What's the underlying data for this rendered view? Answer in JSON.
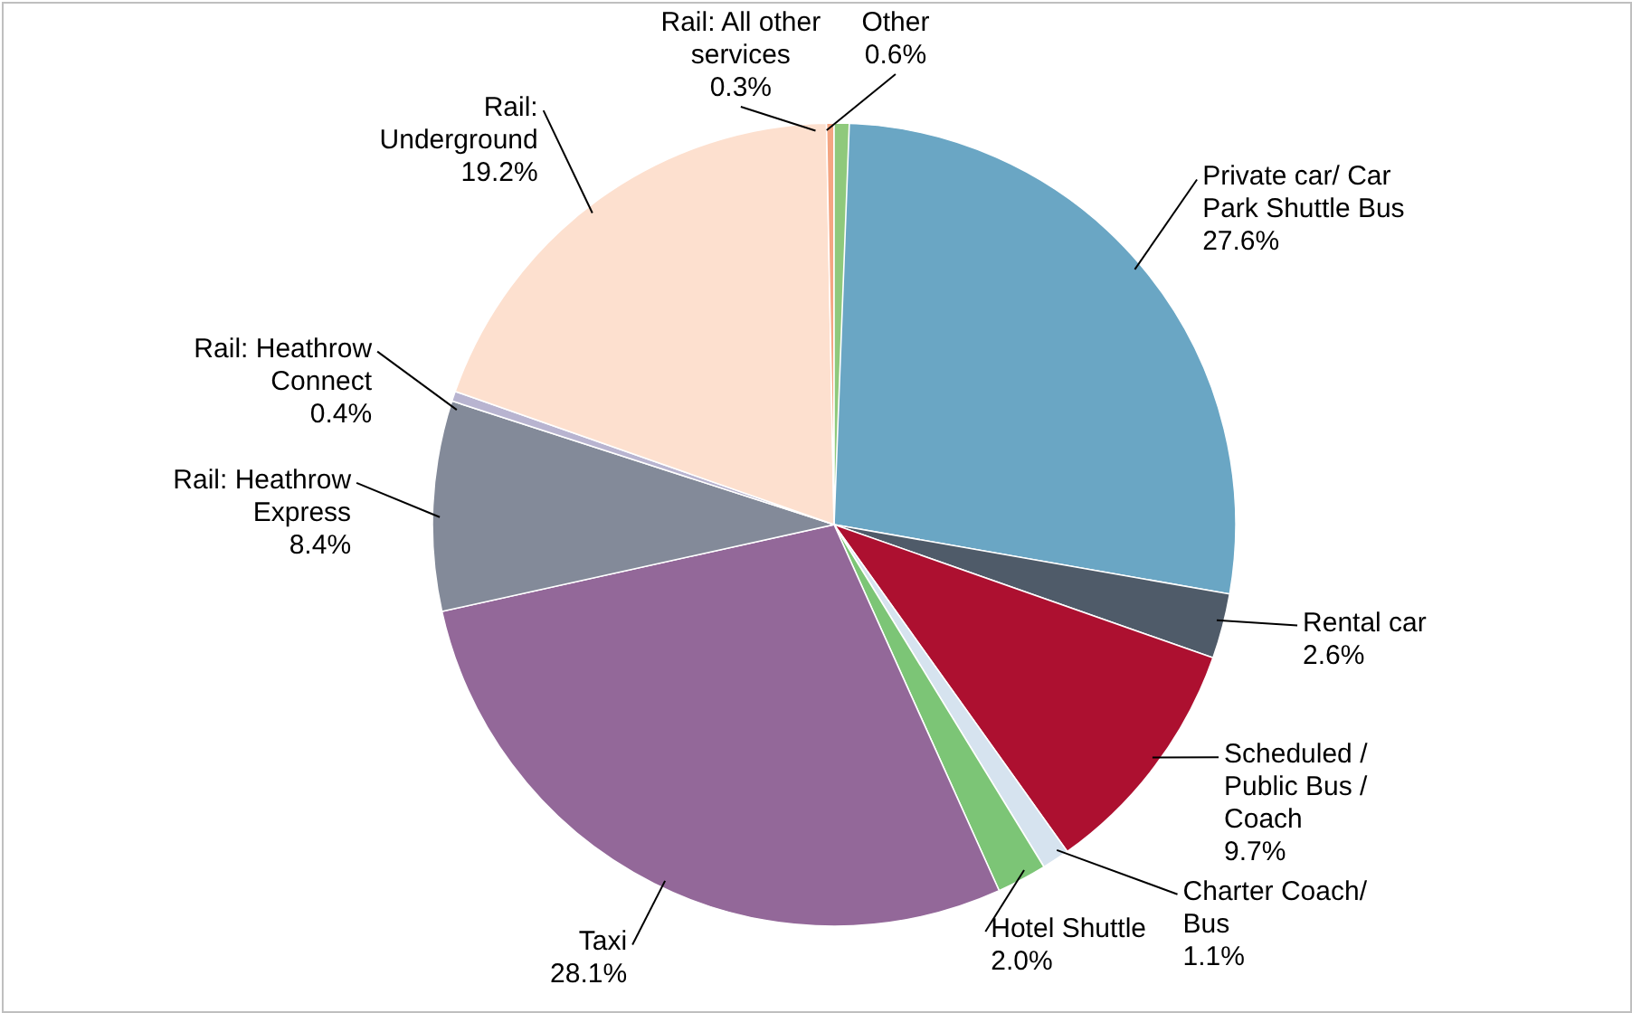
{
  "chart_data": {
    "type": "pie",
    "categories": [
      "Private car/ Car Park Shuttle Bus",
      "Rental car",
      "Scheduled / Public Bus / Coach",
      "Charter Coach/ Bus",
      "Hotel Shuttle",
      "Taxi",
      "Rail: Heathrow Express",
      "Rail: Heathrow Connect",
      "Rail: Underground",
      "Rail: All other services",
      "Other"
    ],
    "values": [
      27.6,
      2.6,
      9.7,
      1.1,
      2.0,
      28.1,
      8.4,
      0.4,
      19.2,
      0.3,
      0.6
    ],
    "colors": [
      "#6aa6c4",
      "#4f5b69",
      "#ad1030",
      "#d6e3ef",
      "#7cc576",
      "#936899",
      "#838a99",
      "#b8b4d0",
      "#fde0cf",
      "#f4a582",
      "#8fc97c"
    ],
    "value_labels": [
      "27.6%",
      "2.6%",
      "9.7%",
      "1.1%",
      "2.0%",
      "28.1%",
      "8.4%",
      "0.4%",
      "19.2%",
      "0.3%",
      "0.6%"
    ]
  }
}
